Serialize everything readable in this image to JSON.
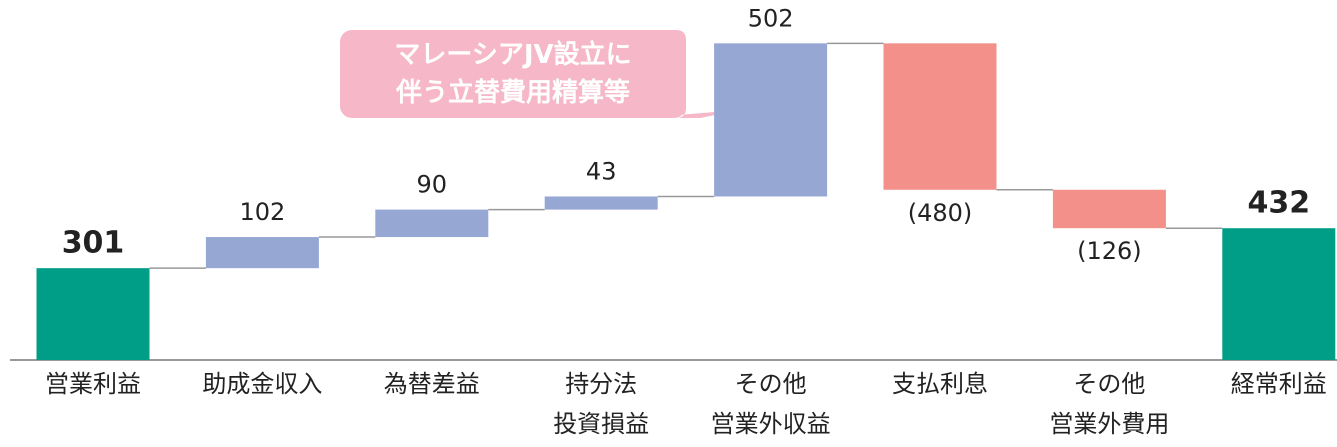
{
  "chart_data": {
    "type": "waterfall",
    "categories": [
      "営業利益",
      "助成金収入",
      "為替差益",
      "持分法\n投資損益",
      "その他\n営業外収益",
      "支払利息",
      "その他\n営業外費用",
      "経常利益"
    ],
    "values": [
      301,
      102,
      90,
      43,
      502,
      -480,
      -126,
      432
    ],
    "value_labels": [
      "301",
      "102",
      "90",
      "43",
      "502",
      "(480)",
      "(126)",
      "432"
    ],
    "colors": [
      "#009e87",
      "#96a7d4",
      "#96a7d4",
      "#96a7d4",
      "#96a7d4",
      "#f4908a",
      "#f4908a",
      "#009e87"
    ],
    "ylim": [
      0,
      1180
    ],
    "annotation": "マレーシアJV設立に\n伴う立替費用精算等"
  }
}
